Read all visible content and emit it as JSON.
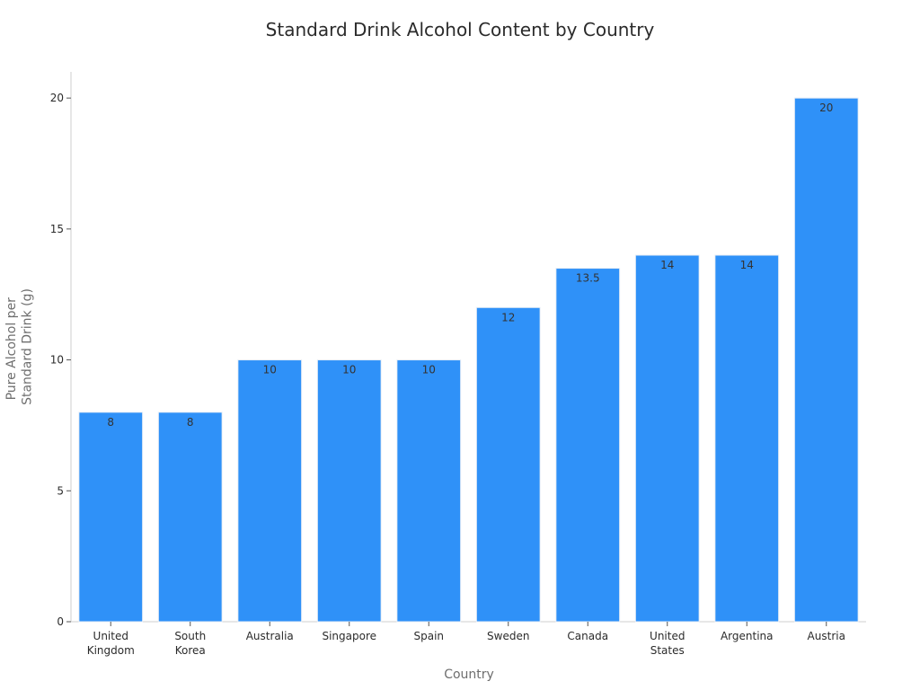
{
  "chart_data": {
    "type": "bar",
    "title": "Standard Drink Alcohol Content by Country",
    "xlabel": "Country",
    "ylabel": [
      "Pure Alcohol per",
      "Standard Drink (g)"
    ],
    "categories": [
      [
        "United",
        "Kingdom"
      ],
      [
        "South",
        "Korea"
      ],
      [
        "Australia"
      ],
      [
        "Singapore"
      ],
      [
        "Spain"
      ],
      [
        "Sweden"
      ],
      [
        "Canada"
      ],
      [
        "United",
        "States"
      ],
      [
        "Argentina"
      ],
      [
        "Austria"
      ]
    ],
    "values": [
      8,
      8,
      10,
      10,
      10,
      12,
      13.5,
      14,
      14,
      20
    ],
    "data_labels": [
      "8",
      "8",
      "10",
      "10",
      "10",
      "12",
      "13.5",
      "14",
      "14",
      "20"
    ],
    "ylim": [
      0,
      21
    ],
    "yticks": [
      0,
      5,
      10,
      15,
      20
    ],
    "grid": false,
    "legend": "none",
    "colors": {
      "bar_fill": "#2f91f8",
      "bar_stroke": "#e8eef6"
    }
  }
}
